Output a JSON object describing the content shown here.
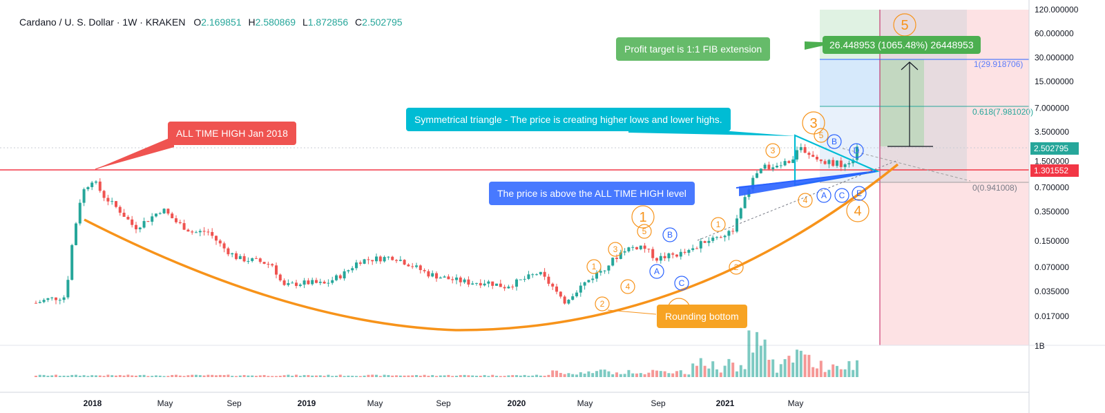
{
  "header": {
    "symbol": "Cardano / U. S. Dollar",
    "interval": "1W",
    "exchange": "KRAKEN",
    "o_label": "O",
    "o": "2.169851",
    "h_label": "H",
    "h": "2.580869",
    "l_label": "L",
    "l": "1.872856",
    "c_label": "C",
    "c": "2.502795"
  },
  "annotations": {
    "ath": "ALL TIME HIGH Jan 2018",
    "above": "The price is above the ALL TIME HIGH level",
    "triangle": "Symmetrical triangle - The price is creating higher lows and lower highs.",
    "rounding": "Rounding bottom",
    "profit": "Profit target is 1:1 FIB extension",
    "measure": "26.448953 (1065.48%) 26448953",
    "fib1": "1(29.918706)",
    "fib618": "0.618(7.981020)",
    "fib0": "0(0.941008)"
  },
  "colors": {
    "up": "#26a69a",
    "down": "#ef5350",
    "orange": "#f7931a",
    "red_line": "#f23645",
    "ath_callout": "#ef5350",
    "teal": "#00bcd4",
    "blue": "#2962ff",
    "green": "#4caf50"
  },
  "chart_data": {
    "type": "candlestick",
    "scale": "log",
    "x_ticks": [
      "2018",
      "May",
      "Sep",
      "2019",
      "May",
      "Sep",
      "2020",
      "May",
      "Sep",
      "2021",
      "May"
    ],
    "y_ticks": [
      "120.000000",
      "60.000000",
      "30.000000",
      "15.000000",
      "7.000000",
      "3.500000",
      "1.500000",
      "0.700000",
      "0.350000",
      "0.150000",
      "0.070000",
      "0.035000",
      "0.017000"
    ],
    "y_tick_values": [
      120,
      60,
      30,
      15,
      7,
      3.5,
      1.5,
      0.7,
      0.35,
      0.15,
      0.07,
      0.035,
      0.017
    ],
    "last_price": "2.502795",
    "ath_level": "1.301552",
    "volume_axis_label": "1B",
    "waves_orange": [
      "1",
      "2",
      "3",
      "4",
      "5"
    ],
    "waves_abc": [
      "A",
      "B",
      "C",
      "D",
      "E"
    ]
  }
}
